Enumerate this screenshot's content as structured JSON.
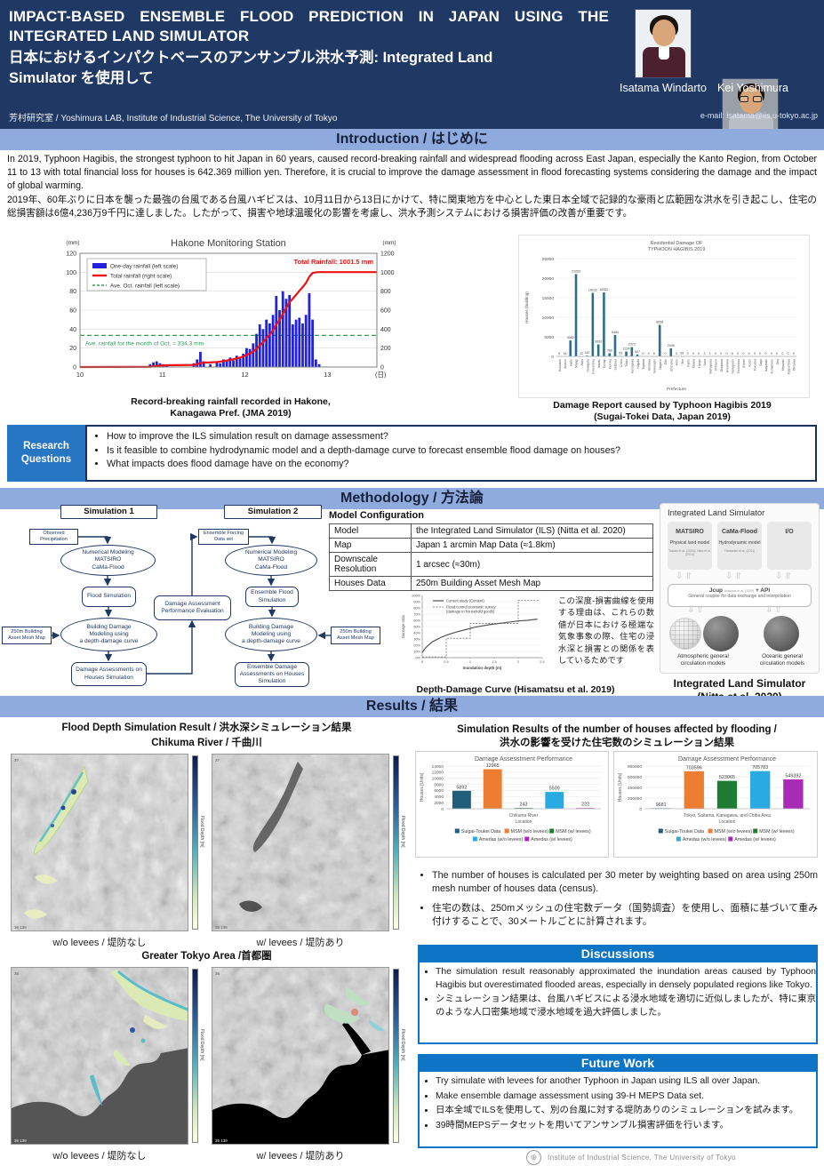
{
  "header": {
    "title_en_l1": "IMPACT-BASED ENSEMBLE FLOOD PREDICTION IN JAPAN USING THE",
    "title_en_l2": "INTEGRATED LAND SIMULATOR",
    "title_ja_l1": "日本におけるインパクトベースのアンサンブル洪水予測: Integrated Land",
    "title_ja_l2": "Simulator を使用して",
    "lab": "芳村研究室 / Yoshimura LAB, Institute of Industrial Science, The University of Tokyo",
    "authors": [
      {
        "name": "Isatama Windarto"
      },
      {
        "name": "Kei Yoshimura"
      }
    ],
    "email": "e-mail: isatama@iis.u-tokyo.ac.jp"
  },
  "sections": {
    "introduction": "Introduction / はじめに",
    "methodology": "Methodology / 方法論",
    "results": "Results / 結果"
  },
  "intro": {
    "para_en": "In 2019, Typhoon Hagibis, the strongest typhoon to hit Japan in 60 years, caused record-breaking rainfall and widespread flooding across East Japan, especially the Kanto Region, from October 11 to 13 with total financial loss for houses is 642.369 million yen. Therefore, it is crucial to improve the damage assessment in flood forecasting systems considering the damage and the impact of global warming.",
    "para_ja": "2019年、60年ぶりに日本を襲った最強の台風である台風ハギビスは、10月11日から13日にかけて、特に関東地方を中心とした東日本全域で記録的な豪雨と広範囲な洪水を引き起こし、住宅の総損害額は6億4,236万9千円に達しました。したがって、損害や地球温暖化の影響を考慮し、洪水予測システムにおける損害評価の改善が重要です。"
  },
  "research_questions": {
    "label": "Research\nQuestions",
    "items": [
      "How to improve the ILS simulation result on damage assessment?",
      "Is it feasible to combine hydrodynamic model and a depth-damage curve to forecast ensemble flood damage on houses?",
      "What impacts does flood damage have on the economy?"
    ]
  },
  "methodology": {
    "flowchart": {
      "sim1": "Simulation 1",
      "sim2": "Simulation 2",
      "obs": "Observed\nPrecipitation",
      "num_model": "Numerical Modeling\nMATSIRO\nCaMa-Flood",
      "flood_sim": "Flood Simulation",
      "mesh_left": "250m Building\nAsset Mesh Map",
      "bdm": "Building Damage\nModeling using\na depth-damage curve",
      "dam_assess": "Damage Assessments on\nHouses Simulation",
      "perf": "Damage Assessment\nPerformance Evaluation",
      "ens_forcing": "Ensemble Forcing\nData set",
      "num_model2": "Numerical Modeling\nMATSIRO\nCaMa-Flood",
      "ens_flood": "Ensemble Flood\nSimulation",
      "bdm2": "Building Damage\nModeling using\na depth-damage curve",
      "mesh_right": "250m Building\nAsset Mesh Map",
      "ens_dam": "Ensemble Damage\nAssessments on Houses\nSimulation"
    },
    "model_config": {
      "title": "Model Configuration",
      "rows": [
        [
          "Model",
          "the Integrated Land Simulator (ILS) (Nitta et al. 2020)"
        ],
        [
          "Map",
          "Japan 1 arcmin Map Data (≈1.8km)"
        ],
        [
          "Downscale\nResolution",
          "1 arcsec (≈30m)"
        ],
        [
          "Houses Data",
          "250m Building Asset Mesh Map"
        ]
      ]
    },
    "ddc_note_ja": "この深度-損害曲線を使用する理由は、これらの数値が日本における極端な気象事象の際、住宅の浸水深と損害との関係を表しているためです",
    "ddc_caption": "Depth-Damage Curve (Hisamatsu et al. 2019)",
    "ils": {
      "title": "Integrated Land Simulator",
      "boxes": [
        {
          "name": "MATSIRO",
          "sub": "Physical land model",
          "ref": "Takata et al. (2003); Nitta et al. (2014)"
        },
        {
          "name": "CaMa-Flood",
          "sub": "Hydrodynamic model",
          "ref": "Yamazaki et al. (2011)"
        },
        {
          "name": "I/O",
          "sub": "",
          "ref": ""
        }
      ],
      "jcup": "Jcup",
      "jcup_ref": "Arakawa et al. (2005)",
      "jcup_api": "+ API",
      "coupler": "General coupler for data exchange and interpolation",
      "globe_left": "Atmospheric general\ncirculation models",
      "globe_right": "Oceanic general\ncirculation models",
      "caption": "Integrated Land Simulator\n(Nitta et al. 2020)"
    }
  },
  "results": {
    "left_title": "Flood Depth Simulation Result / 洪水深シミュレーション結果",
    "chikuma_title": "Chikuma River / 千曲川",
    "tokyo_title": "Greater Tokyo Area /首都圏",
    "cap_wo": "w/o levees / 堤防なし",
    "cap_w": "w/ levees / 堤防あり",
    "right_title": "Simulation Results of the number of houses affected by flooding /\n洪水の影響を受けた住宅数のシミュレーション結果",
    "bullets": [
      "The number of houses is calculated per 30 meter by weighting based on area using 250m mesh number of houses data (census).",
      "住宅の数は、250mメッシュの住宅数データ（国勢調査）を使用し、面積に基づいて重み付けすることで、30メートルごとに計算されます。"
    ],
    "discussions": {
      "title": "Discussions",
      "bullets": [
        "The simulation result reasonably approximated the inundation areas caused by Typhoon Hagibis but overestimated flooded areas, especially in densely populated regions like Tokyo.",
        "シミュレーション結果は、台風ハギビスによる浸水地域を適切に近似しましたが、特に東京のような人口密集地域で浸水地域を過大評価しました。"
      ]
    },
    "future": {
      "title": "Future Work",
      "bullets": [
        "Try simulate with levees for another Typhoon in Japan using ILS all over Japan.",
        "Make ensemble damage assessment using 39-H MEPS Data set.",
        "日本全域でILSを使用して、別の台風に対する堤防ありのシミュレーションを試みます。",
        "39時間MEPSデータセットを用いてアンサンブル損害評価を行います。"
      ]
    },
    "maps": {
      "flood_depth_label": "Flood Depth [m]",
      "chikuma": {
        "lat_top": "37",
        "lat_bottom": "36",
        "lon_left": "138",
        "lon_right": "139"
      },
      "tokyo": {
        "lat_top": "36",
        "lat_bottom": "35",
        "lon_left": "139",
        "lon_right": "140"
      }
    }
  },
  "footer": {
    "org": "Institute of Industrial Science, The University of Tokyo"
  },
  "chart_data": [
    {
      "id": "hakone",
      "type": "bar+line",
      "title": "Hakone Monitoring Station",
      "legend": [
        "One-day rainfall (left scale)",
        "Total rainfall (right scale)",
        "Ave. Oct. rainfall (left scale)"
      ],
      "left_axis": {
        "unit": "(mm)",
        "min": 0,
        "max": 120,
        "step": 20
      },
      "right_axis": {
        "unit": "(mm)",
        "min": 0,
        "max": 1200,
        "step": 200
      },
      "x_axis": {
        "ticks": [
          10,
          11,
          12,
          13
        ],
        "unit": "(日)",
        "min": 10,
        "max": 13.6
      },
      "annotation_total": "Total Rainfall: 1001.5 mm",
      "annotation_avg": "Ave. rainfall for the month of Oct. = 334.3 mm",
      "total_rainfall_mm": 1001.5,
      "avg_oct_mm": 334.3,
      "bars": [
        [
          10.85,
          3
        ],
        [
          10.89,
          5
        ],
        [
          10.93,
          6
        ],
        [
          10.97,
          4
        ],
        [
          11.01,
          3
        ],
        [
          11.05,
          2
        ],
        [
          11.38,
          4
        ],
        [
          11.42,
          8
        ],
        [
          11.46,
          16
        ],
        [
          11.5,
          6
        ],
        [
          11.58,
          3
        ],
        [
          11.66,
          5
        ],
        [
          11.7,
          4
        ],
        [
          11.74,
          8
        ],
        [
          11.78,
          6
        ],
        [
          11.82,
          10
        ],
        [
          11.86,
          7
        ],
        [
          11.9,
          12
        ],
        [
          11.94,
          9
        ],
        [
          11.98,
          14
        ],
        [
          12.02,
          20
        ],
        [
          12.06,
          19
        ],
        [
          12.1,
          25
        ],
        [
          12.14,
          35
        ],
        [
          12.18,
          45
        ],
        [
          12.22,
          40
        ],
        [
          12.26,
          50
        ],
        [
          12.3,
          46
        ],
        [
          12.34,
          55
        ],
        [
          12.38,
          75
        ],
        [
          12.42,
          60
        ],
        [
          12.46,
          80
        ],
        [
          12.5,
          72
        ],
        [
          12.54,
          76
        ],
        [
          12.58,
          45
        ],
        [
          12.62,
          50
        ],
        [
          12.66,
          52
        ],
        [
          12.7,
          46
        ],
        [
          12.74,
          55
        ],
        [
          12.78,
          78
        ],
        [
          12.82,
          50
        ],
        [
          12.86,
          8
        ],
        [
          12.9,
          3
        ]
      ],
      "colors": {
        "bar": "#2222dd",
        "line": "#ee1111",
        "avg": "#3f9b4f"
      },
      "caption": "Record-breaking rainfall recorded in Hakone,\nKanagawa Pref. (JMA 2019)"
    },
    {
      "id": "hagibis_damage",
      "type": "bar",
      "title_l1": "Residential Damage OF",
      "title_l2": "TYPHOON HAGIBIS 2019",
      "ylabel": "Houses (building)",
      "xlabel": "Prefecture",
      "ymax": 25000,
      "ystep": 5000,
      "categories": [
        "Hokkaido",
        "Aomori",
        "Iwate",
        "Miyagi",
        "Akita",
        "Yamagata",
        "Fukushima",
        "Ibaraki",
        "Tochigi",
        "Gunma",
        "Saitama",
        "Chiba",
        "Tokyo",
        "Kanagawa",
        "Niigata",
        "Toyama",
        "Ishikawa",
        "Yamanashi",
        "Nagano",
        "Gifu",
        "Shizuoka",
        "Aichi",
        "Mie",
        "Kyoto",
        "Osaka",
        "Hyogo",
        "Nara",
        "Wakayama",
        "Shimane",
        "Okayama",
        "Hiroshima",
        "Yamaguchi",
        "Tokushima",
        "Ehime",
        "Kochi",
        "Fukuoka",
        "Saga",
        "Nagasaki",
        "Kumamoto",
        "Oita",
        "Miyazaki",
        "Kagoshima",
        "Okinawa"
      ],
      "values": [
        0,
        16,
        4062,
        21053,
        12,
        187,
        16232,
        3063,
        16352,
        788,
        5484,
        93,
        1224,
        2373,
        507,
        0,
        0,
        6,
        8058,
        0,
        2049,
        0,
        83,
        0,
        0,
        0,
        3,
        1,
        0,
        0,
        0,
        0,
        0,
        0,
        4,
        0,
        0,
        0,
        0,
        0,
        0,
        0,
        0
      ],
      "color": "#2d6e8d",
      "caption": "Damage Report caused by Typhoon Hagibis 2019\n(Sugai-Tokei Data, Japan 2019)"
    },
    {
      "id": "ddc",
      "type": "line",
      "solid_name": "Current study (Content)",
      "dashed_name_l1": "Flood control economic survey",
      "dashed_name_l2": "(damage to household goods)",
      "xlabel": "Inundation depth (m)",
      "ylabel": "Damage ratio",
      "x_ticks": [
        0,
        0.5,
        1,
        1.5,
        2,
        2.5
      ],
      "ymax": 100,
      "ystep": 10,
      "solid": [
        [
          0,
          8
        ],
        [
          0.05,
          14
        ],
        [
          0.1,
          18
        ],
        [
          0.2,
          25
        ],
        [
          0.3,
          29
        ],
        [
          0.4,
          33
        ],
        [
          0.5,
          36
        ],
        [
          0.7,
          41
        ],
        [
          0.9,
          45
        ],
        [
          1.1,
          49
        ],
        [
          1.4,
          53
        ],
        [
          1.7,
          56
        ],
        [
          2.0,
          59
        ],
        [
          2.2,
          60
        ],
        [
          2.4,
          62
        ]
      ],
      "dashed": [
        [
          0,
          1
        ],
        [
          0.5,
          1
        ],
        [
          0.5,
          31
        ],
        [
          1,
          31
        ],
        [
          1,
          55
        ],
        [
          2,
          55
        ],
        [
          2,
          92
        ],
        [
          2.45,
          92
        ]
      ],
      "solid_color": "#555555",
      "dashed_color": "#8a8a8a"
    },
    {
      "id": "houses_chikuma",
      "type": "bar",
      "title": "Damage Assesstment Performance",
      "ylabel": "Houses [Units]",
      "ymax": 14000,
      "ystep": 2000,
      "xlabel_l1": "Chikuma River",
      "xlabel_l2": "Location",
      "series": [
        {
          "name": "Suigai-Toukei Data",
          "value": 5892,
          "color": "#1f5f7d"
        },
        {
          "name": "MSM (w/o levees)",
          "value": 12965,
          "color": "#ed7d31"
        },
        {
          "name": "MSM (w/ levees)",
          "value": 243,
          "color": "#1e7b34"
        },
        {
          "name": "Amedas (w/o levees)",
          "value": 5509,
          "color": "#29abe2"
        },
        {
          "name": "Amedas (w/ levees)",
          "value": 222,
          "color": "#a82bb5"
        }
      ]
    },
    {
      "id": "houses_tokyo",
      "type": "bar",
      "title": "Damage Assesstment Performance",
      "ylabel": "Houses [Units]",
      "ymax": 800000,
      "ystep": 200000,
      "xlabel_l1": "Tokyo, Saitama, Kanagawa, and Chiba Area",
      "xlabel_l2": "Location",
      "series": [
        {
          "name": "Suigai-Toukei Data",
          "value": 9681,
          "color": "#1f5f7d"
        },
        {
          "name": "MSM (w/o levees)",
          "value": 703596,
          "color": "#ed7d31"
        },
        {
          "name": "MSM (w/ levees)",
          "value": 523065,
          "color": "#1e7b34"
        },
        {
          "name": "Amedas (w/o levees)",
          "value": 705783,
          "color": "#29abe2"
        },
        {
          "name": "Amedas (w/ levees)",
          "value": 549392,
          "color": "#a82bb5"
        }
      ]
    }
  ]
}
